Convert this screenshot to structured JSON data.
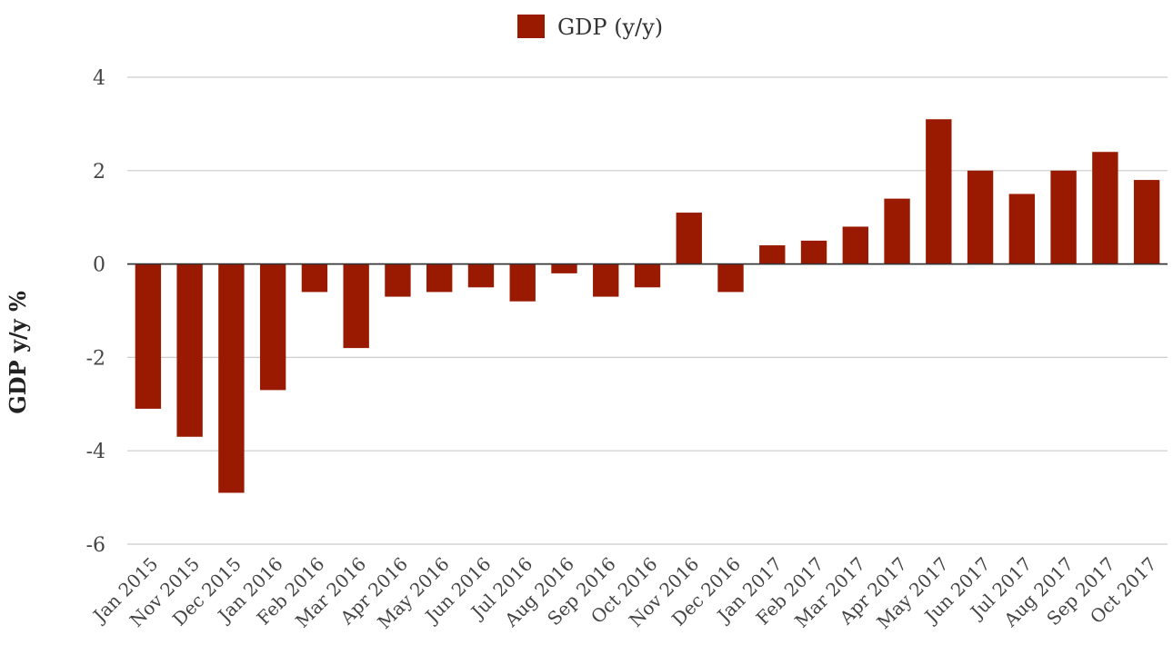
{
  "chart_data": {
    "type": "bar",
    "title": "",
    "xlabel": "",
    "ylabel": "GDP y/y %",
    "ylim": [
      -6,
      4
    ],
    "yticks": [
      -6,
      -4,
      -2,
      0,
      2,
      4
    ],
    "grid": true,
    "legend_position": "top-center",
    "categories": [
      "Jan 2015",
      "Nov 2015",
      "Dec 2015",
      "Jan 2016",
      "Feb 2016",
      "Mar 2016",
      "Apr 2016",
      "May 2016",
      "Jun 2016",
      "Jul 2016",
      "Aug 2016",
      "Sep 2016",
      "Oct 2016",
      "Nov 2016",
      "Dec 2016",
      "Jan 2017",
      "Feb 2017",
      "Mar 2017",
      "Apr 2017",
      "May 2017",
      "Jun 2017",
      "Jul 2017",
      "Aug 2017",
      "Sep 2017",
      "Oct 2017"
    ],
    "series": [
      {
        "name": "GDP (y/y)",
        "color": "#991a00",
        "values": [
          -3.1,
          -3.7,
          -4.9,
          -2.7,
          -0.6,
          -1.8,
          -0.7,
          -0.6,
          -0.5,
          -0.8,
          -0.2,
          -0.7,
          -0.5,
          1.1,
          -0.6,
          0.4,
          0.5,
          0.8,
          1.4,
          3.1,
          2.0,
          1.5,
          2.0,
          2.4,
          1.8
        ]
      }
    ]
  }
}
